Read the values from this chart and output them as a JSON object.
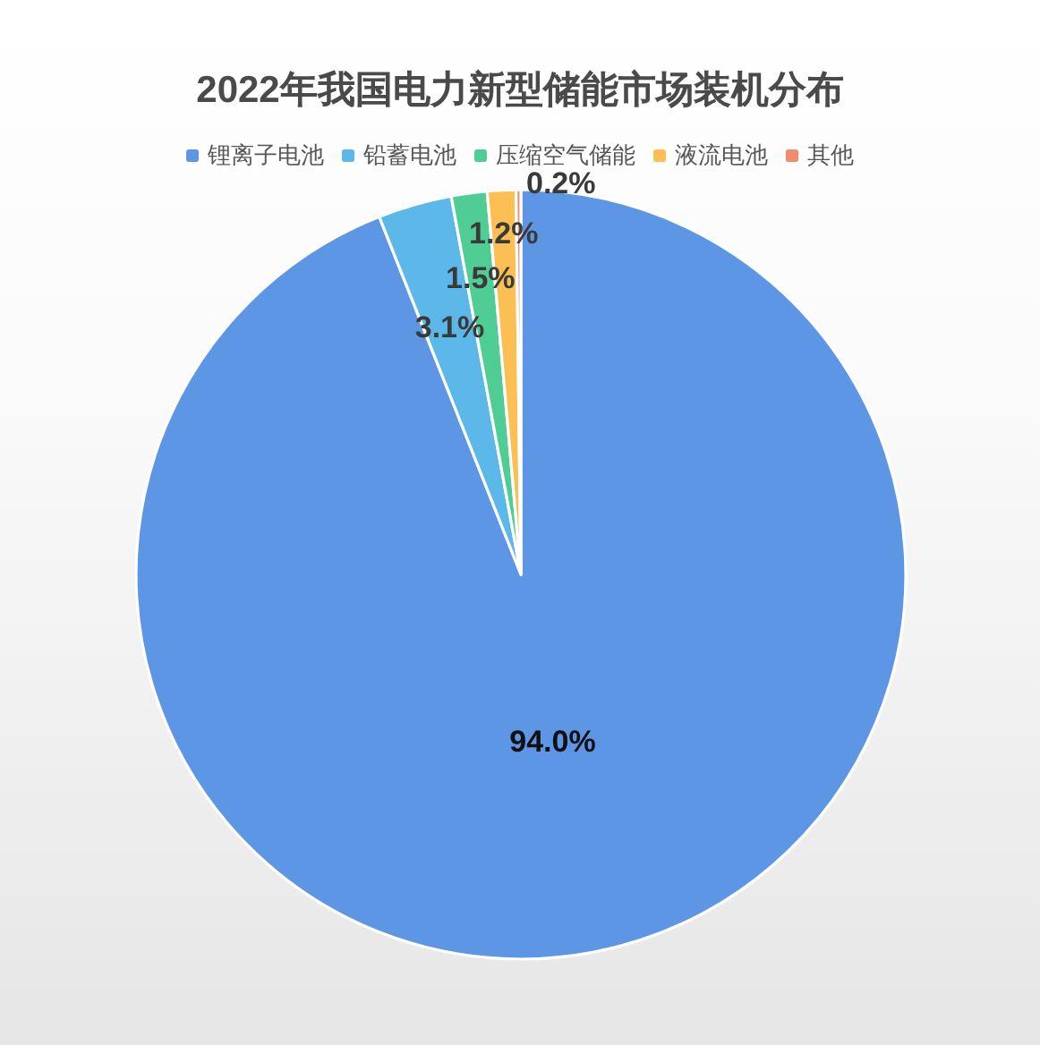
{
  "chart_data": {
    "type": "pie",
    "title": "2022年我国电力新型储能市场装机分布",
    "categories": [
      "锂离子电池",
      "铅蓄电池",
      "压缩空气储能",
      "液流电池",
      "其他"
    ],
    "values": [
      94.0,
      3.1,
      1.5,
      1.2,
      0.2
    ],
    "colors": [
      "#5e96e6",
      "#5bb8e8",
      "#4fcd94",
      "#fbbf53",
      "#ef8b6e"
    ],
    "value_labels": [
      "94.0%",
      "3.1%",
      "1.5%",
      "1.2%",
      "0.2%"
    ],
    "legend": "top"
  }
}
